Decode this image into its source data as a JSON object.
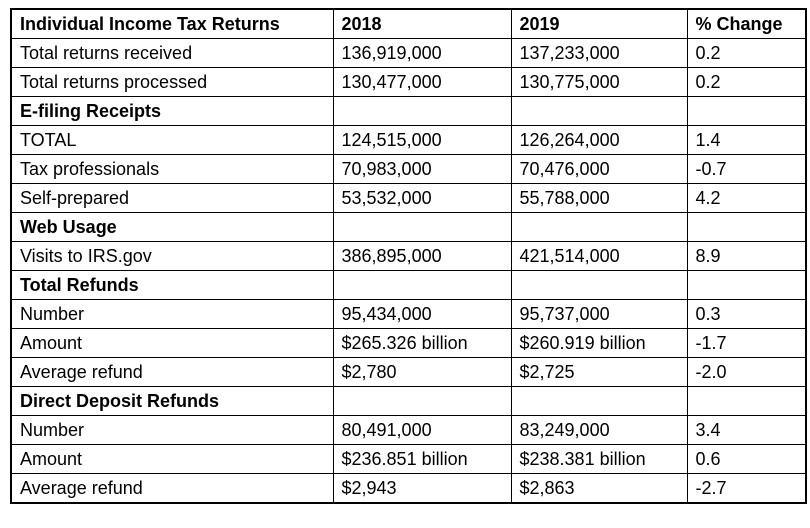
{
  "table": {
    "header": {
      "label": "Individual Income Tax Returns",
      "y2018": "2018",
      "y2019": "2019",
      "change": "% Change"
    },
    "rows": [
      {
        "type": "data",
        "label": "Total returns received",
        "y2018": "136,919,000",
        "y2019": "137,233,000",
        "change": "0.2"
      },
      {
        "type": "data",
        "label": "Total returns processed",
        "y2018": "130,477,000",
        "y2019": "130,775,000",
        "change": "0.2"
      },
      {
        "type": "section",
        "label": "E-filing Receipts",
        "y2018": "",
        "y2019": "",
        "change": ""
      },
      {
        "type": "data",
        "label": "TOTAL",
        "y2018": "124,515,000",
        "y2019": "126,264,000",
        "change": "1.4"
      },
      {
        "type": "data",
        "label": "Tax professionals",
        "y2018": "70,983,000",
        "y2019": "70,476,000",
        "change": "-0.7"
      },
      {
        "type": "data",
        "label": "Self-prepared",
        "y2018": "53,532,000",
        "y2019": "55,788,000",
        "change": "4.2"
      },
      {
        "type": "section",
        "label": "Web Usage",
        "y2018": "",
        "y2019": "",
        "change": ""
      },
      {
        "type": "data",
        "label": "Visits to IRS.gov",
        "y2018": "386,895,000",
        "y2019": "421,514,000",
        "change": "8.9"
      },
      {
        "type": "section",
        "label": "Total Refunds",
        "y2018": "",
        "y2019": "",
        "change": ""
      },
      {
        "type": "data",
        "label": "Number",
        "y2018": "95,434,000",
        "y2019": "95,737,000",
        "change": "0.3"
      },
      {
        "type": "data",
        "label": "Amount",
        "y2018": "$265.326 billion",
        "y2019": "$260.919 billion",
        "change": "-1.7"
      },
      {
        "type": "data",
        "label": "Average refund",
        "y2018": "$2,780",
        "y2019": "$2,725",
        "change": "-2.0"
      },
      {
        "type": "section",
        "label": "Direct Deposit Refunds",
        "y2018": "",
        "y2019": "",
        "change": ""
      },
      {
        "type": "data",
        "label": "Number",
        "y2018": "80,491,000",
        "y2019": "83,249,000",
        "change": "3.4"
      },
      {
        "type": "data",
        "label": "Amount",
        "y2018": "$236.851 billion",
        "y2019": "$238.381 billion",
        "change": "0.6"
      },
      {
        "type": "data",
        "label": "Average refund",
        "y2018": "$2,943",
        "y2019": "$2,863",
        "change": "-2.7"
      }
    ]
  },
  "colors": {
    "border": "#000000",
    "text": "#000000",
    "background": "#ffffff"
  }
}
